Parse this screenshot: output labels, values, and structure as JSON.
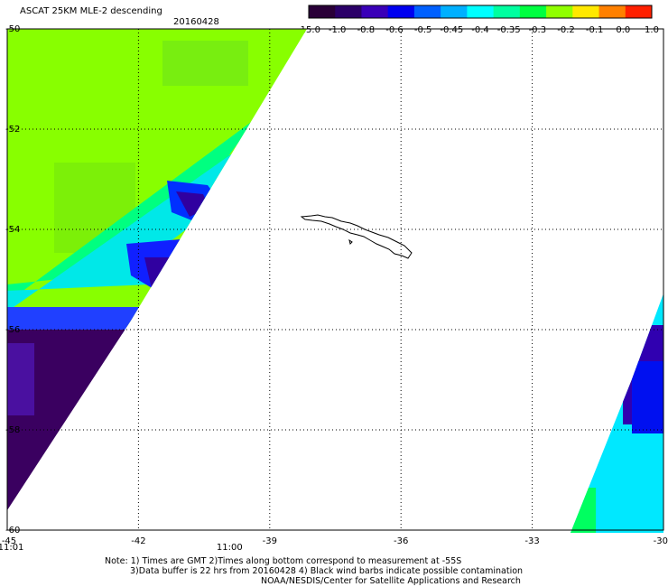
{
  "title": "ASCAT 25KM MLE-2 descending",
  "date": "20160428",
  "colorbar": {
    "labels": [
      "-15.0",
      "-1.0",
      "-0.8",
      "-0.6",
      "-0.5",
      "-0.45",
      "-0.4",
      "-0.35",
      "-0.3",
      "-0.2",
      "-0.1",
      "0.0",
      "1.0"
    ],
    "colors": [
      "#2a0038",
      "#2b0068",
      "#3a00b8",
      "#0000f0",
      "#0060ff",
      "#00b0ff",
      "#00ffff",
      "#00ffa0",
      "#00ff40",
      "#90ff00",
      "#ffe800",
      "#ff8000",
      "#ff2000"
    ]
  },
  "map": {
    "lat_labels": [
      "-50",
      "-52",
      "-54",
      "-56",
      "-58",
      "-60"
    ],
    "lon_labels": [
      "-45",
      "-42",
      "-39",
      "-36",
      "-33",
      "-30"
    ],
    "time_labels": [
      {
        "lon": -45,
        "text": "11:01"
      },
      {
        "lon": -40,
        "text": "11:00"
      }
    ],
    "time_color": "#cc2200",
    "land": "South Georgia"
  },
  "notes": [
    "Note: 1) Times are GMT 2)Times along bottom correspond to measurement at -55S",
    "3)Data buffer is 22 hrs from 20160428 4) Black wind barbs indicate possible contamination",
    "NOAA/NESDIS/Center for Satellite Applications and Research"
  ]
}
